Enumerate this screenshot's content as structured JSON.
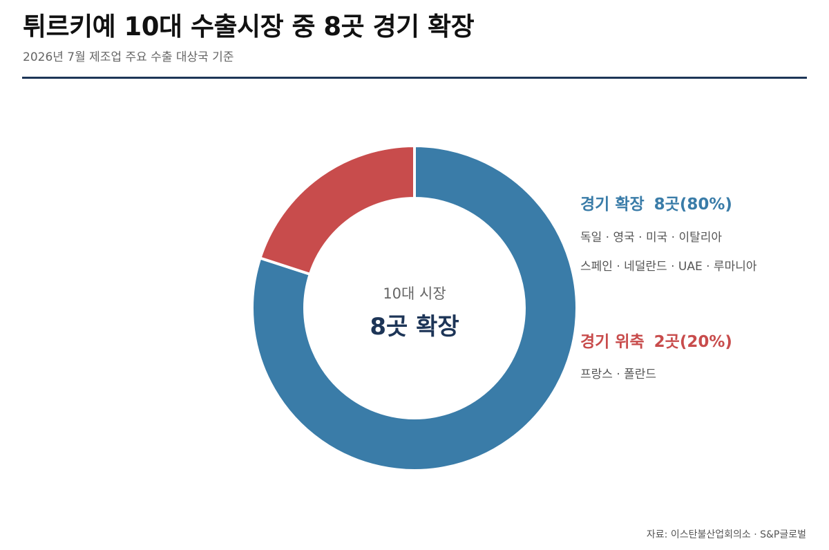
{
  "title": "튀르키예 10대 수출시장 중 8곳 경기 확장",
  "subtitle": "2026년 7월 제조업 주요 수출 대상국 기준",
  "accent_color": "#1d3557",
  "chart_data": {
    "type": "pie",
    "donut": true,
    "slices": [
      {
        "label": "경기 확장",
        "count_label": "8곳(80%)",
        "count": 8,
        "percent": 80,
        "color": "#3a7ca8"
      },
      {
        "label": "경기 위축",
        "count_label": "2곳(20%)",
        "count": 2,
        "percent": 20,
        "color": "#c84c4c"
      }
    ],
    "center": {
      "caption": "10대 시장",
      "value": "8곳 확장"
    }
  },
  "legend": {
    "expansion": {
      "heading": "경기 확장",
      "count": "8곳(80%)",
      "lines": [
        "독일 · 영국 · 미국 · 이탈리아",
        "스페인 · 네덜란드 · UAE · 루마니아"
      ]
    },
    "contraction": {
      "heading": "경기 위축",
      "count": "2곳(20%)",
      "lines": [
        "프랑스 · 폴란드"
      ]
    }
  },
  "source": "자료: 이스탄불산업회의소 · S&P글로벌"
}
